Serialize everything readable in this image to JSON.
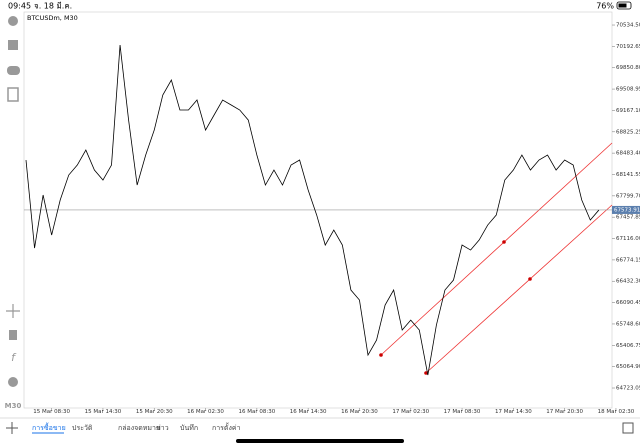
{
  "status_bar": {
    "time": "09:45",
    "date": "จ. 18 มี.ค.",
    "battery": "76%"
  },
  "chart_data": {
    "type": "line",
    "title": "BTCUSDm, M30",
    "color": "#000000",
    "categories": [
      null,
      null,
      null,
      "15 Mar 08:30",
      null,
      null,
      null,
      null,
      null,
      "15 Mar 14:30",
      null,
      null,
      null,
      null,
      null,
      "15 Mar 20:30",
      null,
      null,
      null,
      null,
      null,
      "16 Mar 02:30",
      null,
      null,
      null,
      null,
      null,
      "16 Mar 08:30",
      null,
      null,
      null,
      null,
      null,
      "16 Mar 14:30",
      null,
      null,
      null,
      null,
      null,
      "16 Mar 20:30",
      null,
      null,
      null,
      null,
      null,
      "17 Mar 02:30",
      null,
      null,
      null,
      null,
      null,
      "17 Mar 08:30",
      null,
      null,
      null,
      null,
      null,
      "17 Mar 14:30",
      null,
      null,
      null,
      null,
      null,
      "17 Mar 20:30",
      null,
      null,
      null,
      null,
      null,
      "18 Mar 02:30"
    ],
    "values": [
      68373,
      66964,
      67813,
      67172,
      67733,
      68133,
      68293,
      68533,
      68213,
      68053,
      68293,
      70214,
      69013,
      67973,
      68453,
      68853,
      69414,
      69654,
      69174,
      69174,
      69334,
      68853,
      69094,
      69334,
      69254,
      69174,
      69013,
      68453,
      67973,
      68213,
      67973,
      68293,
      68373,
      67893,
      67492,
      67012,
      67252,
      67012,
      66292,
      66132,
      65251,
      65491,
      66052,
      66292,
      65651,
      65811,
      65651,
      64931,
      65731,
      66292,
      66452,
      67012,
      66932,
      67092,
      67332,
      67492,
      68053,
      68213,
      68453,
      68213,
      68373,
      68453,
      68213,
      68373,
      68293,
      67733,
      67412,
      67572,
      null,
      null
    ],
    "ylim": [
      64403,
      70743
    ],
    "yticks": [
      {
        "value": 70534.5,
        "label": "70534.50"
      },
      {
        "value": 70192.65,
        "label": "70192.65"
      },
      {
        "value": 69850.8,
        "label": "69850.80"
      },
      {
        "value": 69508.95,
        "label": "69508.95"
      },
      {
        "value": 69167.1,
        "label": "69167.10"
      },
      {
        "value": 68825.25,
        "label": "68825.25"
      },
      {
        "value": 68483.4,
        "label": "68483.40"
      },
      {
        "value": 68141.55,
        "label": "68141.55"
      },
      {
        "value": 67799.7,
        "label": "67799.70"
      },
      {
        "value": 67457.85,
        "label": "67457.85"
      },
      {
        "value": 67116,
        "label": "67116.00"
      },
      {
        "value": 66774.15,
        "label": "66774.15"
      },
      {
        "value": 66432.3,
        "label": "66432.30"
      },
      {
        "value": 66090.45,
        "label": "66090.45"
      },
      {
        "value": 65748.6,
        "label": "65748.60"
      },
      {
        "value": 65406.75,
        "label": "65406.75"
      },
      {
        "value": 65064.9,
        "label": "65064.90"
      },
      {
        "value": 64723.05,
        "label": "64723.05"
      }
    ],
    "current_price": {
      "value": 67573.91,
      "label": "67573.91"
    }
  },
  "toolbar": {
    "timeframe": "M30"
  },
  "tabs": [
    "การซื้อขาย",
    "ประวัติ",
    "กล่องจดหมาย",
    "ข่าว",
    "บันทึก",
    "การตั้งค่า"
  ]
}
